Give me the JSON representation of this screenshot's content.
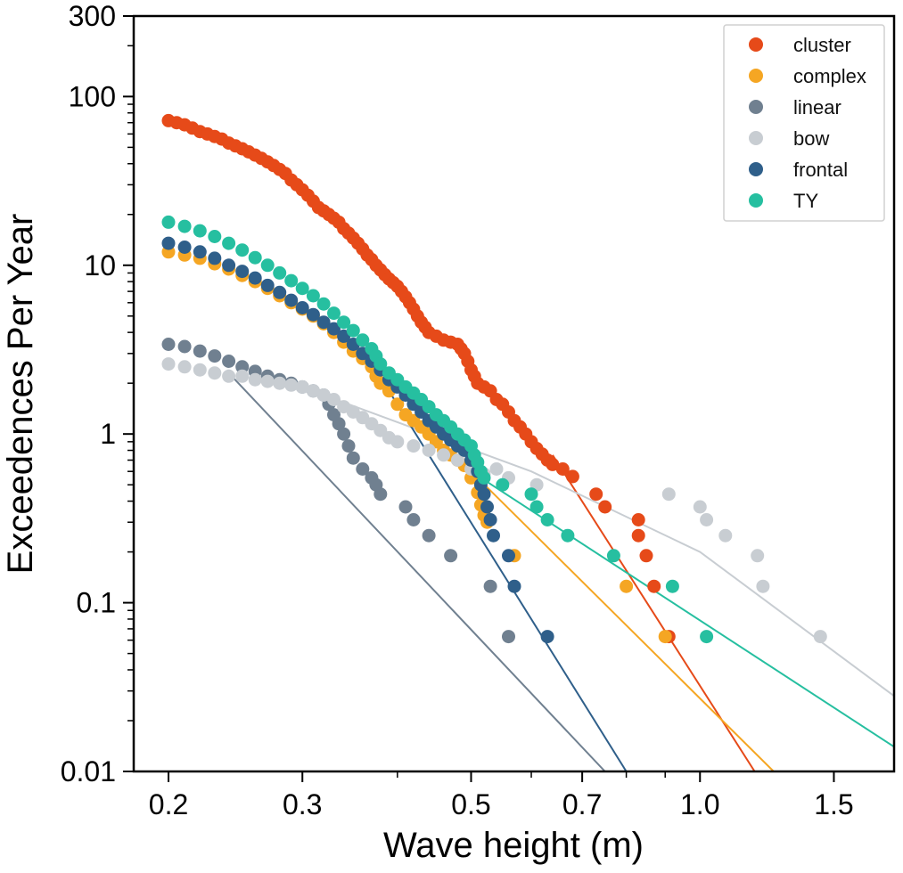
{
  "chart_data": {
    "type": "scatter",
    "title": "",
    "xlabel": "Wave height (m)",
    "ylabel": "Exceedences Per Year",
    "xscale": "log",
    "yscale": "log",
    "xlim": [
      0.18,
      1.8
    ],
    "ylim": [
      0.01,
      300
    ],
    "xticks": [
      0.2,
      0.3,
      0.5,
      0.7,
      1.0,
      1.5
    ],
    "xtick_labels": [
      "0.2",
      "0.3",
      "0.5",
      "0.7",
      "1.0",
      "1.5"
    ],
    "yticks": [
      0.01,
      0.1,
      1,
      10,
      100,
      300
    ],
    "ytick_labels": [
      "0.01",
      "0.1",
      "1",
      "10",
      "100",
      "300"
    ],
    "legend_position": "top-right",
    "series": [
      {
        "name": "cluster",
        "color": "#e64a19",
        "points": [
          [
            0.2,
            72
          ],
          [
            0.205,
            70
          ],
          [
            0.21,
            68
          ],
          [
            0.215,
            65
          ],
          [
            0.22,
            62
          ],
          [
            0.225,
            60
          ],
          [
            0.23,
            58
          ],
          [
            0.235,
            56
          ],
          [
            0.24,
            53
          ],
          [
            0.245,
            51
          ],
          [
            0.25,
            49
          ],
          [
            0.255,
            47
          ],
          [
            0.26,
            45
          ],
          [
            0.265,
            43
          ],
          [
            0.27,
            41
          ],
          [
            0.275,
            39
          ],
          [
            0.28,
            37
          ],
          [
            0.285,
            35
          ],
          [
            0.29,
            32
          ],
          [
            0.295,
            30
          ],
          [
            0.3,
            28
          ],
          [
            0.305,
            26
          ],
          [
            0.31,
            24
          ],
          [
            0.315,
            22
          ],
          [
            0.32,
            21
          ],
          [
            0.325,
            20
          ],
          [
            0.33,
            19
          ],
          [
            0.335,
            18
          ],
          [
            0.34,
            16.5
          ],
          [
            0.345,
            15.5
          ],
          [
            0.35,
            14.5
          ],
          [
            0.355,
            13.5
          ],
          [
            0.36,
            12.5
          ],
          [
            0.365,
            11.5
          ],
          [
            0.37,
            10.8
          ],
          [
            0.375,
            10
          ],
          [
            0.38,
            9.4
          ],
          [
            0.385,
            8.8
          ],
          [
            0.39,
            8.3
          ],
          [
            0.395,
            7.9
          ],
          [
            0.4,
            7.5
          ],
          [
            0.405,
            7.0
          ],
          [
            0.41,
            6.5
          ],
          [
            0.415,
            6.0
          ],
          [
            0.42,
            5.5
          ],
          [
            0.425,
            5.0
          ],
          [
            0.43,
            4.6
          ],
          [
            0.435,
            4.3
          ],
          [
            0.44,
            4.0
          ],
          [
            0.45,
            3.8
          ],
          [
            0.46,
            3.6
          ],
          [
            0.47,
            3.5
          ],
          [
            0.48,
            3.4
          ],
          [
            0.485,
            3.2
          ],
          [
            0.49,
            3.0
          ],
          [
            0.495,
            2.7
          ],
          [
            0.5,
            2.4
          ],
          [
            0.505,
            2.2
          ],
          [
            0.51,
            2.0
          ],
          [
            0.52,
            1.9
          ],
          [
            0.53,
            1.8
          ],
          [
            0.54,
            1.6
          ],
          [
            0.55,
            1.5
          ],
          [
            0.56,
            1.35
          ],
          [
            0.57,
            1.2
          ],
          [
            0.58,
            1.1
          ],
          [
            0.59,
            1.0
          ],
          [
            0.6,
            0.9
          ],
          [
            0.61,
            0.82
          ],
          [
            0.62,
            0.76
          ],
          [
            0.63,
            0.7
          ],
          [
            0.64,
            0.66
          ],
          [
            0.66,
            0.62
          ],
          [
            0.68,
            0.56
          ],
          [
            0.73,
            0.44
          ],
          [
            0.75,
            0.37
          ],
          [
            0.83,
            0.31
          ],
          [
            0.83,
            0.25
          ],
          [
            0.85,
            0.19
          ],
          [
            0.87,
            0.125
          ],
          [
            0.91,
            0.063
          ]
        ],
        "fit": [
          [
            0.64,
            0.75
          ],
          [
            1.18,
            0.01
          ]
        ]
      },
      {
        "name": "complex",
        "color": "#f5a623",
        "points": [
          [
            0.2,
            12
          ],
          [
            0.21,
            11.5
          ],
          [
            0.22,
            11
          ],
          [
            0.23,
            10.2
          ],
          [
            0.24,
            9.5
          ],
          [
            0.25,
            8.7
          ],
          [
            0.26,
            8
          ],
          [
            0.27,
            7.3
          ],
          [
            0.28,
            6.6
          ],
          [
            0.29,
            6.0
          ],
          [
            0.3,
            5.5
          ],
          [
            0.31,
            5.0
          ],
          [
            0.32,
            4.5
          ],
          [
            0.33,
            4.0
          ],
          [
            0.34,
            3.5
          ],
          [
            0.35,
            3.1
          ],
          [
            0.36,
            2.8
          ],
          [
            0.37,
            2.5
          ],
          [
            0.375,
            2.2
          ],
          [
            0.38,
            2.0
          ],
          [
            0.39,
            1.8
          ],
          [
            0.4,
            1.5
          ],
          [
            0.41,
            1.3
          ],
          [
            0.42,
            1.2
          ],
          [
            0.43,
            1.1
          ],
          [
            0.44,
            1.0
          ],
          [
            0.45,
            0.9
          ],
          [
            0.46,
            0.8
          ],
          [
            0.47,
            0.75
          ],
          [
            0.48,
            0.7
          ],
          [
            0.49,
            0.65
          ],
          [
            0.5,
            0.55
          ],
          [
            0.51,
            0.45
          ],
          [
            0.515,
            0.38
          ],
          [
            0.52,
            0.33
          ],
          [
            0.525,
            0.3
          ],
          [
            0.57,
            0.19
          ],
          [
            0.8,
            0.125
          ],
          [
            0.9,
            0.063
          ]
        ],
        "fit": [
          [
            0.5,
            0.6
          ],
          [
            1.25,
            0.01
          ]
        ]
      },
      {
        "name": "linear",
        "color": "#708090",
        "points": [
          [
            0.2,
            3.4
          ],
          [
            0.21,
            3.3
          ],
          [
            0.22,
            3.1
          ],
          [
            0.23,
            2.9
          ],
          [
            0.24,
            2.7
          ],
          [
            0.25,
            2.5
          ],
          [
            0.26,
            2.35
          ],
          [
            0.27,
            2.2
          ],
          [
            0.28,
            2.1
          ],
          [
            0.29,
            2.0
          ],
          [
            0.3,
            1.9
          ],
          [
            0.31,
            1.8
          ],
          [
            0.32,
            1.7
          ],
          [
            0.325,
            1.5
          ],
          [
            0.33,
            1.3
          ],
          [
            0.335,
            1.15
          ],
          [
            0.34,
            1.0
          ],
          [
            0.345,
            0.85
          ],
          [
            0.35,
            0.72
          ],
          [
            0.36,
            0.62
          ],
          [
            0.37,
            0.55
          ],
          [
            0.375,
            0.5
          ],
          [
            0.38,
            0.44
          ],
          [
            0.41,
            0.37
          ],
          [
            0.42,
            0.31
          ],
          [
            0.44,
            0.25
          ],
          [
            0.47,
            0.19
          ],
          [
            0.53,
            0.125
          ],
          [
            0.56,
            0.063
          ]
        ],
        "fit": [
          [
            0.24,
            2.3
          ],
          [
            0.75,
            0.01
          ]
        ]
      },
      {
        "name": "bow",
        "color": "#c8cdd2",
        "points": [
          [
            0.2,
            2.6
          ],
          [
            0.21,
            2.5
          ],
          [
            0.22,
            2.4
          ],
          [
            0.23,
            2.3
          ],
          [
            0.24,
            2.2
          ],
          [
            0.25,
            2.2
          ],
          [
            0.26,
            2.1
          ],
          [
            0.27,
            2.05
          ],
          [
            0.28,
            2.0
          ],
          [
            0.29,
            1.95
          ],
          [
            0.3,
            1.9
          ],
          [
            0.31,
            1.8
          ],
          [
            0.32,
            1.7
          ],
          [
            0.33,
            1.6
          ],
          [
            0.34,
            1.45
          ],
          [
            0.35,
            1.35
          ],
          [
            0.36,
            1.25
          ],
          [
            0.37,
            1.15
          ],
          [
            0.38,
            1.05
          ],
          [
            0.39,
            0.95
          ],
          [
            0.4,
            0.9
          ],
          [
            0.42,
            0.85
          ],
          [
            0.44,
            0.8
          ],
          [
            0.46,
            0.75
          ],
          [
            0.48,
            0.7
          ],
          [
            0.5,
            0.62
          ],
          [
            0.52,
            0.58
          ],
          [
            0.54,
            0.62
          ],
          [
            0.56,
            0.55
          ],
          [
            0.61,
            0.5
          ],
          [
            0.91,
            0.44
          ],
          [
            1.0,
            0.37
          ],
          [
            1.02,
            0.31
          ],
          [
            1.08,
            0.25
          ],
          [
            1.19,
            0.19
          ],
          [
            1.21,
            0.125
          ],
          [
            1.44,
            0.063
          ]
        ],
        "fit": [
          [
            0.32,
            1.7
          ],
          [
            0.6,
            0.6
          ],
          [
            1.0,
            0.2
          ],
          [
            1.8,
            0.028
          ]
        ]
      },
      {
        "name": "frontal",
        "color": "#2f5f8a",
        "points": [
          [
            0.2,
            13.5
          ],
          [
            0.21,
            12.8
          ],
          [
            0.22,
            12
          ],
          [
            0.23,
            11
          ],
          [
            0.24,
            10
          ],
          [
            0.25,
            9.2
          ],
          [
            0.26,
            8.4
          ],
          [
            0.27,
            7.6
          ],
          [
            0.28,
            6.9
          ],
          [
            0.29,
            6.2
          ],
          [
            0.3,
            5.6
          ],
          [
            0.31,
            5.1
          ],
          [
            0.32,
            4.6
          ],
          [
            0.33,
            4.2
          ],
          [
            0.34,
            3.8
          ],
          [
            0.35,
            3.4
          ],
          [
            0.36,
            3.0
          ],
          [
            0.37,
            2.7
          ],
          [
            0.38,
            2.4
          ],
          [
            0.39,
            2.1
          ],
          [
            0.4,
            1.9
          ],
          [
            0.41,
            1.7
          ],
          [
            0.42,
            1.5
          ],
          [
            0.43,
            1.35
          ],
          [
            0.44,
            1.2
          ],
          [
            0.45,
            1.1
          ],
          [
            0.46,
            1.0
          ],
          [
            0.47,
            0.92
          ],
          [
            0.48,
            0.85
          ],
          [
            0.49,
            0.8
          ],
          [
            0.5,
            0.7
          ],
          [
            0.51,
            0.6
          ],
          [
            0.515,
            0.5
          ],
          [
            0.52,
            0.44
          ],
          [
            0.525,
            0.37
          ],
          [
            0.53,
            0.31
          ],
          [
            0.535,
            0.25
          ],
          [
            0.56,
            0.19
          ],
          [
            0.57,
            0.125
          ],
          [
            0.63,
            0.063
          ]
        ],
        "fit": [
          [
            0.36,
            3.2
          ],
          [
            0.8,
            0.01
          ]
        ]
      },
      {
        "name": "TY",
        "color": "#26bfa0",
        "points": [
          [
            0.2,
            18
          ],
          [
            0.21,
            17
          ],
          [
            0.22,
            16
          ],
          [
            0.23,
            14.8
          ],
          [
            0.24,
            13.5
          ],
          [
            0.25,
            12.3
          ],
          [
            0.26,
            11.1
          ],
          [
            0.27,
            10
          ],
          [
            0.28,
            9
          ],
          [
            0.29,
            8.1
          ],
          [
            0.3,
            7.3
          ],
          [
            0.31,
            6.6
          ],
          [
            0.32,
            5.9
          ],
          [
            0.33,
            5.2
          ],
          [
            0.34,
            4.6
          ],
          [
            0.35,
            4.1
          ],
          [
            0.36,
            3.6
          ],
          [
            0.37,
            3.2
          ],
          [
            0.375,
            2.9
          ],
          [
            0.38,
            2.6
          ],
          [
            0.39,
            2.3
          ],
          [
            0.4,
            2.1
          ],
          [
            0.41,
            1.9
          ],
          [
            0.42,
            1.75
          ],
          [
            0.43,
            1.6
          ],
          [
            0.44,
            1.45
          ],
          [
            0.45,
            1.3
          ],
          [
            0.46,
            1.2
          ],
          [
            0.47,
            1.1
          ],
          [
            0.48,
            1.0
          ],
          [
            0.49,
            0.92
          ],
          [
            0.5,
            0.85
          ],
          [
            0.505,
            0.75
          ],
          [
            0.51,
            0.68
          ],
          [
            0.515,
            0.6
          ],
          [
            0.52,
            0.55
          ],
          [
            0.55,
            0.5
          ],
          [
            0.6,
            0.44
          ],
          [
            0.61,
            0.37
          ],
          [
            0.63,
            0.31
          ],
          [
            0.67,
            0.25
          ],
          [
            0.77,
            0.19
          ],
          [
            0.92,
            0.125
          ],
          [
            1.02,
            0.063
          ]
        ],
        "fit": [
          [
            0.5,
            0.6
          ],
          [
            1.8,
            0.014
          ]
        ]
      }
    ]
  }
}
